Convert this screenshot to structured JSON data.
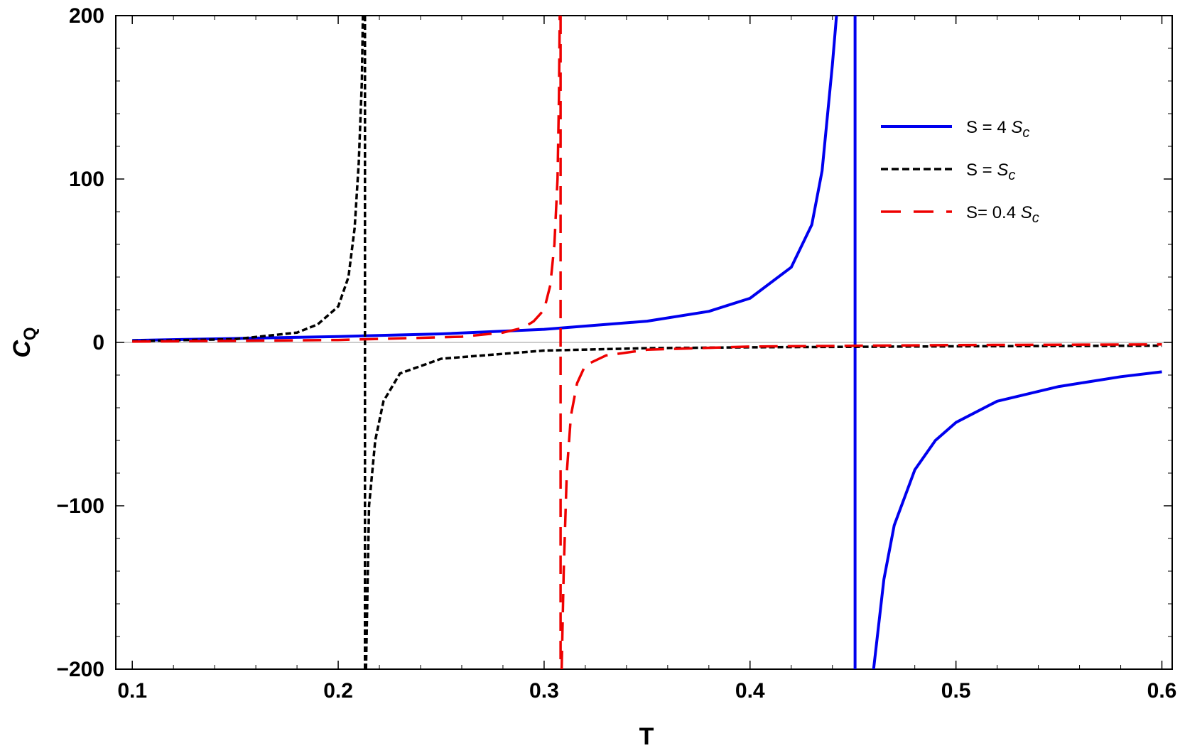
{
  "chart_data": {
    "type": "line",
    "xlabel": "T",
    "ylabel": {
      "main": "C",
      "sub": "Q"
    },
    "xlim": [
      0.092,
      0.605
    ],
    "ylim": [
      -200,
      200
    ],
    "xticks": [
      0.1,
      0.2,
      0.3,
      0.4,
      0.5,
      0.6
    ],
    "xtick_labels": [
      "0.1",
      "0.2",
      "0.3",
      "0.4",
      "0.5",
      "0.6"
    ],
    "yticks": [
      -200,
      -100,
      0,
      100,
      200
    ],
    "ytick_labels": [
      "−200",
      "−100",
      "0",
      "100",
      "200"
    ],
    "grid": false,
    "legend_position": "top-right",
    "series": [
      {
        "name": "S = 4 S_c",
        "legend_main": "S = 4 ",
        "legend_sub": "S",
        "legend_subsub": "c",
        "color": "#0000ee",
        "style": "solid",
        "asymptote": 0.451,
        "left_branch": [
          [
            0.1,
            1.2
          ],
          [
            0.15,
            2.4
          ],
          [
            0.2,
            3.6
          ],
          [
            0.25,
            5.2
          ],
          [
            0.3,
            8.0
          ],
          [
            0.35,
            13.0
          ],
          [
            0.38,
            19.0
          ],
          [
            0.4,
            27.0
          ],
          [
            0.42,
            46.0
          ],
          [
            0.43,
            72.0
          ],
          [
            0.435,
            105.0
          ],
          [
            0.44,
            170.0
          ],
          [
            0.442,
            200.0
          ]
        ],
        "right_branch": [
          [
            0.46,
            -200.0
          ],
          [
            0.465,
            -145.0
          ],
          [
            0.47,
            -112.0
          ],
          [
            0.48,
            -78.0
          ],
          [
            0.49,
            -60.0
          ],
          [
            0.5,
            -49.0
          ],
          [
            0.52,
            -36.0
          ],
          [
            0.55,
            -27.0
          ],
          [
            0.58,
            -21.0
          ],
          [
            0.6,
            -18.0
          ]
        ]
      },
      {
        "name": "S =  S_c",
        "legend_main": "S =  ",
        "legend_sub": "S",
        "legend_subsub": "c",
        "color": "#000000",
        "style": "dotted",
        "asymptote": 0.213,
        "left_branch": [
          [
            0.1,
            0.8
          ],
          [
            0.15,
            2.0
          ],
          [
            0.18,
            6.0
          ],
          [
            0.19,
            11.0
          ],
          [
            0.2,
            22.0
          ],
          [
            0.205,
            40.0
          ],
          [
            0.208,
            70.0
          ],
          [
            0.21,
            110.0
          ],
          [
            0.2115,
            160.0
          ],
          [
            0.212,
            200.0
          ]
        ],
        "right_branch": [
          [
            0.2135,
            -200.0
          ],
          [
            0.215,
            -100.0
          ],
          [
            0.218,
            -60.0
          ],
          [
            0.222,
            -36.0
          ],
          [
            0.23,
            -19.0
          ],
          [
            0.25,
            -10.0
          ],
          [
            0.3,
            -5.0
          ],
          [
            0.35,
            -3.5
          ],
          [
            0.4,
            -3.0
          ],
          [
            0.5,
            -2.4
          ],
          [
            0.6,
            -2.0
          ]
        ]
      },
      {
        "name": "S=  0.4 S_c",
        "legend_main": "S=  0.4 ",
        "legend_sub": "S",
        "legend_subsub": "c",
        "color": "#ee0000",
        "style": "dashed",
        "asymptote": 0.308,
        "left_branch": [
          [
            0.1,
            0.5
          ],
          [
            0.2,
            1.5
          ],
          [
            0.26,
            3.5
          ],
          [
            0.28,
            6.0
          ],
          [
            0.29,
            9.0
          ],
          [
            0.295,
            13.0
          ],
          [
            0.3,
            20.0
          ],
          [
            0.303,
            35.0
          ],
          [
            0.305,
            60.0
          ],
          [
            0.3065,
            100.0
          ],
          [
            0.3072,
            150.0
          ],
          [
            0.3076,
            200.0
          ]
        ],
        "right_branch": [
          [
            0.3085,
            -200.0
          ],
          [
            0.3095,
            -140.0
          ],
          [
            0.311,
            -80.0
          ],
          [
            0.313,
            -45.0
          ],
          [
            0.316,
            -25.0
          ],
          [
            0.32,
            -14.0
          ],
          [
            0.33,
            -8.0
          ],
          [
            0.35,
            -4.5
          ],
          [
            0.4,
            -2.5
          ],
          [
            0.5,
            -1.6
          ],
          [
            0.6,
            -1.2
          ]
        ]
      }
    ]
  }
}
